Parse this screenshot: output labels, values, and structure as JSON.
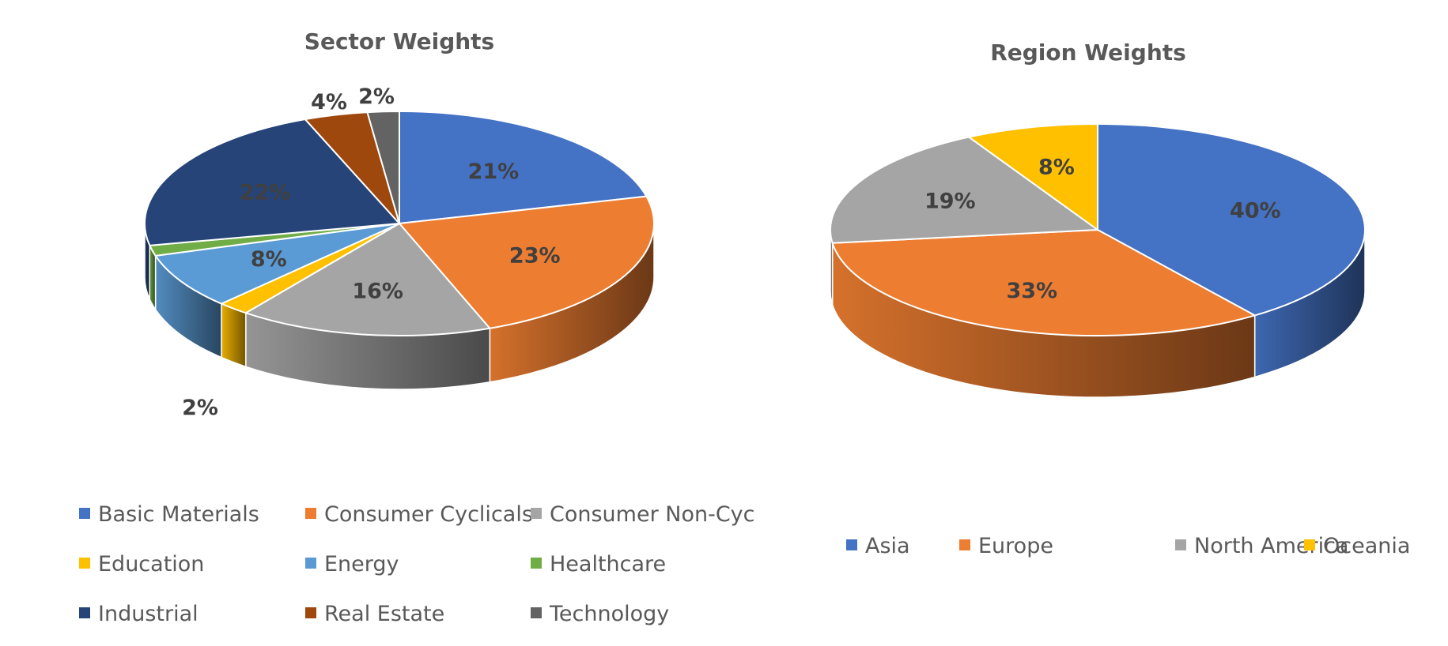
{
  "chart_data": [
    {
      "type": "pie",
      "style": "3d",
      "title": "Sector Weights",
      "legend_position": "bottom",
      "categories": [
        "Basic Materials",
        "Consumer Cyclicals",
        "Consumer Non-Cyc",
        "Education",
        "Energy",
        "Healthcare",
        "Industrial",
        "Real Estate",
        "Technology"
      ],
      "values": [
        21,
        23,
        16,
        2,
        8,
        1.5,
        22,
        4,
        2
      ],
      "data_labels": [
        "21%",
        "23%",
        "16%",
        "2%",
        "8%",
        "",
        "22%",
        "4%",
        "2%"
      ],
      "colors": [
        "#4472C4",
        "#ED7D31",
        "#A5A5A5",
        "#FFC000",
        "#5B9BD5",
        "#70AD47",
        "#264478",
        "#9E480E",
        "#636363"
      ]
    },
    {
      "type": "pie",
      "style": "3d",
      "title": "Region Weights",
      "legend_position": "bottom",
      "categories": [
        "Asia",
        "Europe",
        "North America",
        "Oceania"
      ],
      "values": [
        40,
        33,
        19,
        8
      ],
      "data_labels": [
        "40%",
        "33%",
        "19%",
        "8%"
      ],
      "colors": [
        "#4472C4",
        "#ED7D31",
        "#A5A5A5",
        "#FFC000"
      ]
    }
  ]
}
